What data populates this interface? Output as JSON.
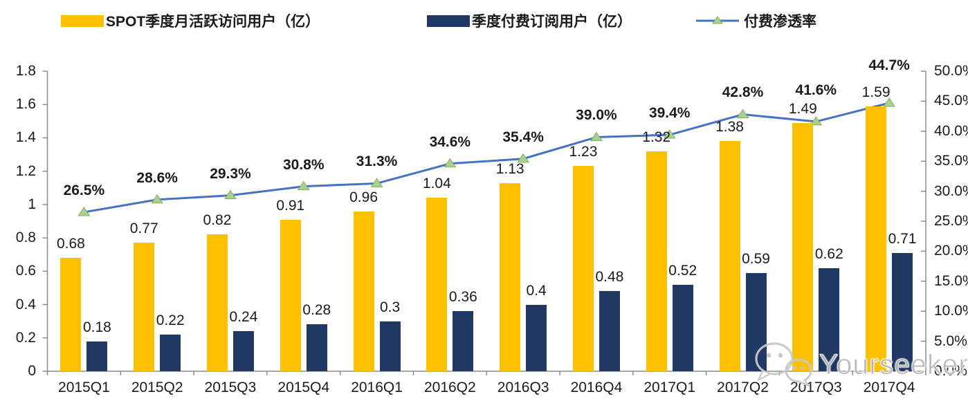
{
  "legend": [
    {
      "label": "SPOT季度月活跃访问用户（亿）",
      "color": "#FFC000"
    },
    {
      "label": "季度付费订阅用户（亿）",
      "color": "#1F3864"
    },
    {
      "label": "付费渗透率",
      "line_color": "#4472C4",
      "marker_color": "#A9D18E"
    }
  ],
  "chart_data": {
    "type": "bar",
    "categories": [
      "2015Q1",
      "2015Q2",
      "2015Q3",
      "2015Q4",
      "2016Q1",
      "2016Q2",
      "2016Q3",
      "2016Q4",
      "2017Q1",
      "2017Q2",
      "2017Q3",
      "2017Q4"
    ],
    "series": [
      {
        "name": "SPOT季度月活跃访问用户（亿）",
        "type": "bar",
        "axis": "left",
        "color": "#FFC000",
        "values": [
          0.68,
          0.77,
          0.82,
          0.91,
          0.96,
          1.04,
          1.13,
          1.23,
          1.32,
          1.38,
          1.49,
          1.59
        ],
        "labels": [
          "0.68",
          "0.77",
          "0.82",
          "0.91",
          "0.96",
          "1.04",
          "1.13",
          "1.23",
          "1.32",
          "1.38",
          "1.49",
          "1.59"
        ]
      },
      {
        "name": "季度付费订阅用户（亿）",
        "type": "bar",
        "axis": "left",
        "color": "#1F3864",
        "values": [
          0.18,
          0.22,
          0.24,
          0.28,
          0.3,
          0.36,
          0.4,
          0.48,
          0.52,
          0.59,
          0.62,
          0.71
        ],
        "labels": [
          "0.18",
          "0.22",
          "0.24",
          "0.28",
          "0.3",
          "0.36",
          "0.4",
          "0.48",
          "0.52",
          "0.59",
          "0.62",
          "0.71"
        ]
      },
      {
        "name": "付费渗透率",
        "type": "line",
        "axis": "right",
        "color": "#4472C4",
        "marker": "triangle",
        "marker_color": "#A9D18E",
        "values": [
          26.5,
          28.6,
          29.3,
          30.8,
          31.3,
          34.6,
          35.4,
          39.0,
          39.4,
          42.8,
          41.6,
          44.7
        ],
        "labels": [
          "26.5%",
          "28.6%",
          "29.3%",
          "30.8%",
          "31.3%",
          "34.6%",
          "35.4%",
          "39.0%",
          "39.4%",
          "42.8%",
          "41.6%",
          "44.7%"
        ]
      }
    ],
    "left_axis": {
      "min": 0,
      "max": 1.8,
      "ticks": [
        "0",
        "0.2",
        "0.4",
        "0.6",
        "0.8",
        "1",
        "1.2",
        "1.4",
        "1.6",
        "1.8"
      ]
    },
    "right_axis": {
      "min": 0,
      "max": 50,
      "ticks": [
        "0.0%",
        "5.0%",
        "10.0%",
        "15.0%",
        "20.0%",
        "25.0%",
        "30.0%",
        "35.0%",
        "40.0%",
        "45.0%",
        "50.0%"
      ]
    },
    "grid": false,
    "legend_position": "top"
  },
  "watermark": {
    "text": "Yourseeker",
    "icon": "wechat-icon"
  }
}
